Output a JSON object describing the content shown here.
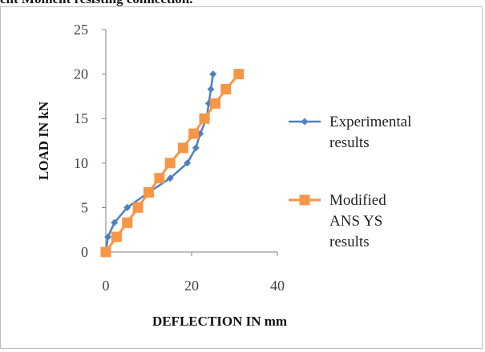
{
  "caption": "ent Moment resisting connection.",
  "chart_data": {
    "type": "line",
    "xlabel": "DEFLECTION IN mm",
    "ylabel": "LOAD IN kN",
    "xlim": [
      0,
      40
    ],
    "ylim": [
      0,
      25
    ],
    "x_ticks": [
      0,
      20,
      40
    ],
    "y_ticks": [
      0,
      5,
      10,
      15,
      20,
      25
    ],
    "grid": false,
    "legend_position": "right",
    "series": [
      {
        "name": "Experimental results",
        "name_lines": [
          "Experimental",
          "results"
        ],
        "color": "#4f81bd",
        "marker": "diamond",
        "points": [
          [
            0,
            0
          ],
          [
            0.5,
            1.7
          ],
          [
            2,
            3.3
          ],
          [
            5,
            5
          ],
          [
            10,
            6.7
          ],
          [
            15,
            8.3
          ],
          [
            19,
            10
          ],
          [
            21,
            11.7
          ],
          [
            22,
            13.3
          ],
          [
            23.5,
            15
          ],
          [
            24,
            16.7
          ],
          [
            24.5,
            18.3
          ],
          [
            25,
            20
          ]
        ]
      },
      {
        "name": "Modified ANSYS results",
        "name_lines": [
          "Modified",
          "ANS YS",
          "results"
        ],
        "color": "#f79646",
        "marker": "square",
        "points": [
          [
            0,
            0
          ],
          [
            2.5,
            1.7
          ],
          [
            5,
            3.3
          ],
          [
            7.5,
            5
          ],
          [
            10,
            6.7
          ],
          [
            12.5,
            8.3
          ],
          [
            15,
            10
          ],
          [
            18,
            11.7
          ],
          [
            20.5,
            13.3
          ],
          [
            23,
            15
          ],
          [
            25.5,
            16.7
          ],
          [
            28,
            18.3
          ],
          [
            31,
            20
          ]
        ]
      }
    ]
  }
}
